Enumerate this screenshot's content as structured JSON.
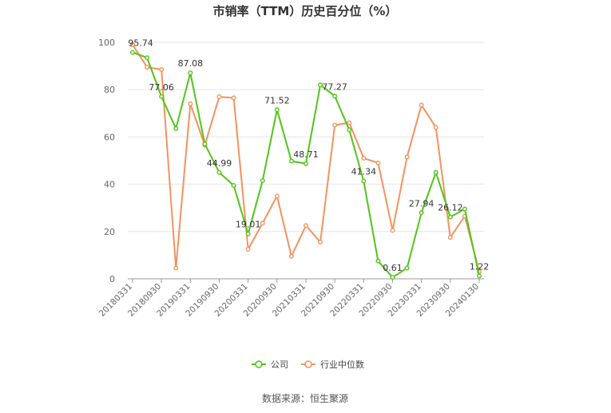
{
  "chart_data": {
    "type": "line",
    "title": "市销率（TTM）历史百分位（%）",
    "source": "数据来源：恒生聚源",
    "ylim": [
      0,
      100
    ],
    "yticks": [
      0,
      20,
      40,
      60,
      80,
      100
    ],
    "grid": true,
    "legend_position": "bottom",
    "x_tick_labels": [
      "20180331",
      "20180930",
      "20190331",
      "20190930",
      "20200331",
      "20200930",
      "20210331",
      "20210930",
      "20220331",
      "20220930",
      "20230331",
      "20230930",
      "20240130"
    ],
    "x": [
      "20180331",
      "20180630",
      "20180930",
      "20181231",
      "20190331",
      "20190630",
      "20190930",
      "20191231",
      "20200331",
      "20200630",
      "20200930",
      "20201231",
      "20210331",
      "20210630",
      "20210930",
      "20211231",
      "20220331",
      "20220630",
      "20220930",
      "20221231",
      "20230331",
      "20230630",
      "20230930",
      "20231231",
      "20240130"
    ],
    "series": [
      {
        "name": "公司",
        "color": "#52c41a",
        "values": [
          95.74,
          93.5,
          77.06,
          63.5,
          87.08,
          57.0,
          44.99,
          39.5,
          19.01,
          41.5,
          71.52,
          49.8,
          48.71,
          82.0,
          77.27,
          63.0,
          41.34,
          7.5,
          0.61,
          4.5,
          27.94,
          45.0,
          26.12,
          29.5,
          1.22
        ],
        "labels": [
          "95.74",
          null,
          "77.06",
          null,
          "87.08",
          null,
          "44.99",
          null,
          "19.01",
          null,
          "71.52",
          null,
          "48.71",
          null,
          "77.27",
          null,
          "41.34",
          null,
          "0.61",
          null,
          "27.94",
          null,
          "26.12",
          null,
          "1.22"
        ]
      },
      {
        "name": "行业中位数",
        "color": "#f4925e",
        "values": [
          99.0,
          89.5,
          88.5,
          4.5,
          74.0,
          56.5,
          77.0,
          76.5,
          12.5,
          23.5,
          35.0,
          9.5,
          22.5,
          15.5,
          65.0,
          66.0,
          51.0,
          49.0,
          20.5,
          51.5,
          73.5,
          64.0,
          17.5,
          26.5,
          3.0
        ]
      }
    ]
  }
}
